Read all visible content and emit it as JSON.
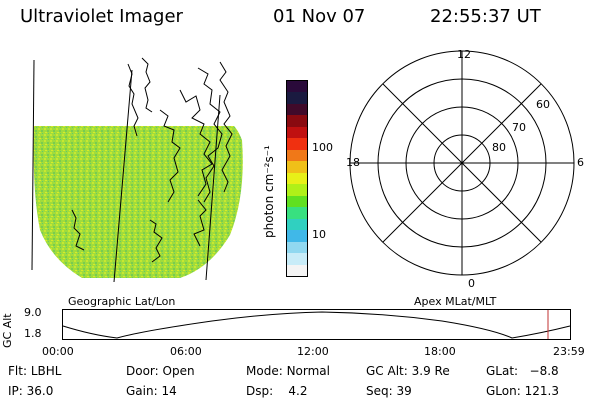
{
  "header": {
    "instrument": "Ultraviolet Imager",
    "date": "01 Nov 07",
    "time": "22:55:37 UT"
  },
  "colorbar": {
    "label": "photon cm⁻²s⁻¹",
    "ticks": [
      "100",
      "10"
    ],
    "colors": [
      "#2a0a3a",
      "#1a1a40",
      "#400a2a",
      "#8a0a10",
      "#c01010",
      "#f03010",
      "#f07818",
      "#f0c018",
      "#e8f018",
      "#b0f018",
      "#60e020",
      "#38e080",
      "#30d0c0",
      "#40b8e8",
      "#90d8f0",
      "#c8ecf8",
      "#f4f4f4"
    ]
  },
  "geo_map": {
    "label": "Geographic Lat/Lon",
    "fill_color": "#9ad83a"
  },
  "polar": {
    "label": "Apex MLat/MLT",
    "mlt_labels": {
      "top": "12",
      "left": "18",
      "right": "6",
      "bottom": "0"
    },
    "lat_labels": [
      "60",
      "70",
      "80"
    ]
  },
  "alt_plot": {
    "ylabel": "GC Alt",
    "y_ticks": [
      "9.0",
      "1.8"
    ],
    "x_ticks": [
      "00:00",
      "06:00",
      "12:00",
      "18:00",
      "23:59"
    ],
    "marker_color": "#c03030"
  },
  "footer": {
    "flt_label": "Flt:",
    "flt_value": "LBHL",
    "ip_label": "IP:",
    "ip_value": "36.0",
    "door_label": "Door:",
    "door_value": "Open",
    "gain_label": "Gain:",
    "gain_value": "14",
    "mode_label": "Mode:",
    "mode_value": "Normal",
    "dsp_label": "Dsp:",
    "dsp_value": "4.2",
    "gcalt_label": "GC Alt:",
    "gcalt_value": "3.9 Re",
    "seq_label": "Seq:",
    "seq_value": "39",
    "glat_label": "GLat:",
    "glat_value": "−8.8",
    "glon_label": "GLon:",
    "glon_value": "121.3"
  }
}
